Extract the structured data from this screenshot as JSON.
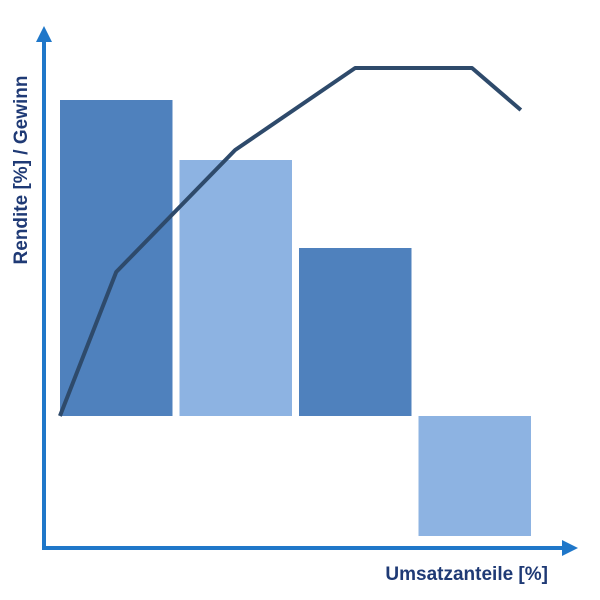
{
  "chart_data": [
    {
      "type": "bar",
      "x_label": "Umsatzanteile [%]",
      "y_label": "Rendite [%] / Gewinn",
      "categories": [
        null,
        null,
        null,
        null
      ],
      "values": [
        79,
        64,
        42,
        -30
      ],
      "colors": [
        "#4f81bd",
        "#8db3e2",
        "#4f81bd",
        "#8db3e2"
      ],
      "ylim": [
        -33,
        97
      ]
    },
    {
      "type": "line",
      "x": [
        3,
        13.6,
        36,
        58.6,
        80.6,
        89.8
      ],
      "values": [
        0,
        36,
        66.5,
        87,
        87,
        76.5
      ],
      "color": "#2e4a6b",
      "xlim": [
        0,
        100
      ],
      "ylim": [
        -33,
        97
      ]
    }
  ]
}
